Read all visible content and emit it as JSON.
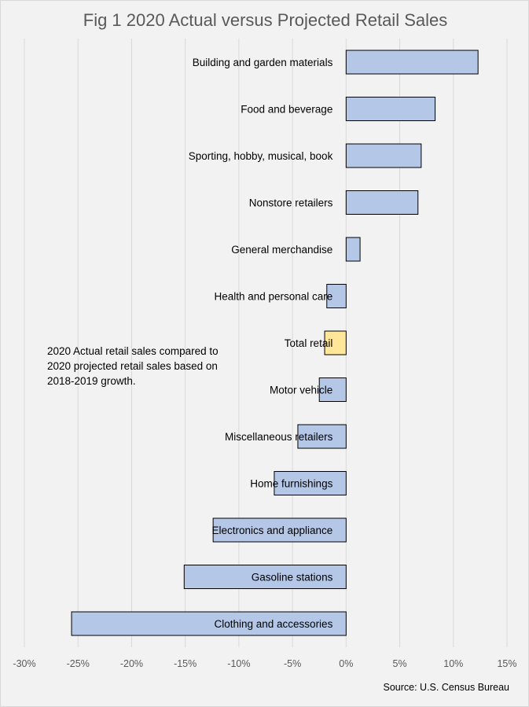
{
  "chart_data": {
    "type": "bar",
    "orientation": "horizontal",
    "title": "Fig 1 2020 Actual versus Projected Retail Sales",
    "categories": [
      "Building and garden materials",
      "Food and beverage",
      "Sporting, hobby, musical, book",
      "Nonstore retailers",
      "General merchandise",
      "Health and personal care",
      "Total retail",
      "Motor vehicle",
      "Miscellaneous  retailers",
      "Home furnishings",
      "Electronics and appliance",
      "Gasoline stations",
      "Clothing and accessories"
    ],
    "values": [
      12.3,
      8.3,
      7.0,
      6.7,
      1.3,
      -1.8,
      -2.0,
      -2.5,
      -4.5,
      -6.7,
      -12.4,
      -15.1,
      -25.6
    ],
    "unit": "%",
    "xlim": [
      -30,
      15
    ],
    "xticks": [
      "-30%",
      "-25%",
      "-20%",
      "-15%",
      "-10%",
      "-5%",
      "0%",
      "5%",
      "10%",
      "15%"
    ],
    "grid": true,
    "colors": {
      "default": "#b4c7e7",
      "highlight": "#ffe699",
      "highlight_category": "Total retail"
    },
    "annotation": "2020 Actual retail sales compared  to 2020 projected retail sales based on 2018-2019 growth.",
    "source": "Source: U.S. Census Bureau"
  }
}
